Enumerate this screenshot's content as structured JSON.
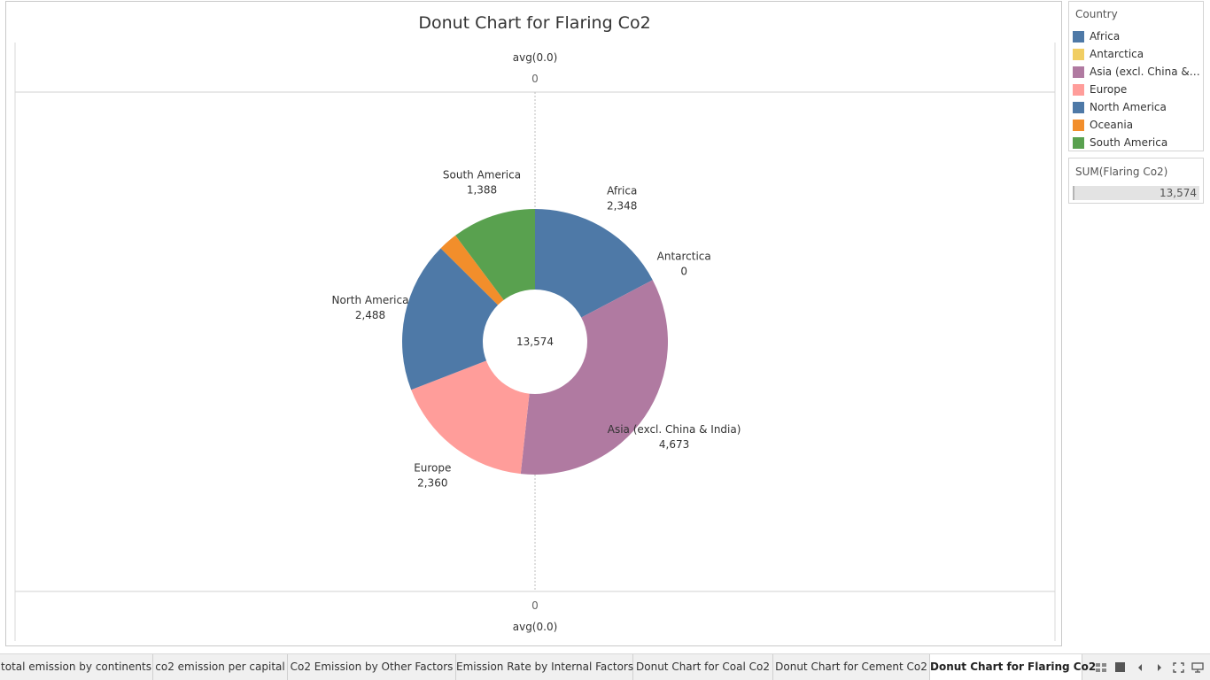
{
  "chart_data": {
    "type": "pie",
    "title": "Donut Chart for Flaring Co2",
    "center_label": "13,574",
    "axis_top_label": "avg(0.0)",
    "axis_top_tick": "0",
    "axis_bottom_label": "avg(0.0)",
    "axis_bottom_tick": "0",
    "categories": [
      "Africa",
      "Antarctica",
      "Asia (excl. China & India)",
      "Europe",
      "North America",
      "Oceania",
      "South America"
    ],
    "values": [
      2348,
      0,
      4673,
      2360,
      2488,
      317,
      1388
    ],
    "value_labels": [
      "2,348",
      "0",
      "4,673",
      "2,360",
      "2,488",
      "",
      "1,388"
    ],
    "colors": [
      "#4e79a7",
      "#f1ce63",
      "#b07aa1",
      "#ff9d9a",
      "#4e79a7",
      "#f28e2b",
      "#59a14f"
    ]
  },
  "legend": {
    "title": "Country",
    "items": [
      {
        "label": "Africa",
        "color": "#4e79a7"
      },
      {
        "label": "Antarctica",
        "color": "#f1ce63"
      },
      {
        "label": "Asia (excl. China & In..",
        "color": "#b07aa1"
      },
      {
        "label": "Europe",
        "color": "#ff9d9a"
      },
      {
        "label": "North America",
        "color": "#4e79a7"
      },
      {
        "label": "Oceania",
        "color": "#f28e2b"
      },
      {
        "label": "South America",
        "color": "#59a14f"
      }
    ]
  },
  "sum_panel": {
    "title": "SUM(Flaring Co2)",
    "value": "13,574"
  },
  "tabs": [
    {
      "label": "total emission by continents",
      "active": false
    },
    {
      "label": "co2 emission per capital",
      "active": false
    },
    {
      "label": "Co2 Emission by Other Factors",
      "active": false
    },
    {
      "label": "Emission Rate by Internal Factors",
      "active": false
    },
    {
      "label": "Donut Chart for Coal Co2",
      "active": false
    },
    {
      "label": "Donut Chart for Cement Co2",
      "active": false
    },
    {
      "label": "Donut Chart for Flaring Co2",
      "active": true
    }
  ],
  "nav_icons": [
    "grid-view-icon",
    "filmstrip-icon",
    "previous-sheet-icon",
    "next-sheet-icon",
    "fullscreen-icon",
    "presentation-icon"
  ]
}
